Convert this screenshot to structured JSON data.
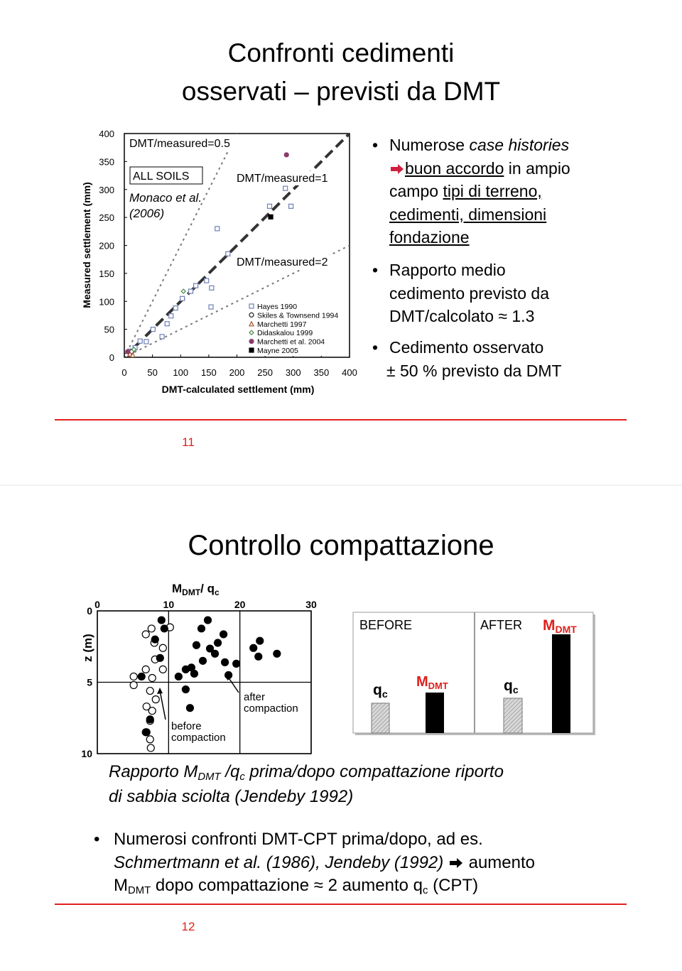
{
  "slides": [
    {
      "title": [
        "Confronti cedimenti",
        "osservati – previsti da DMT"
      ],
      "chart": {
        "type": "scatter",
        "xlabel": "DMT-calculated settlement (mm)",
        "ylabel": "Measured settlement (mm)",
        "xlim": [
          0,
          400
        ],
        "ylim": [
          0,
          400
        ],
        "xticks": [
          0,
          50,
          100,
          150,
          200,
          250,
          300,
          350,
          400
        ],
        "yticks": [
          0,
          50,
          100,
          150,
          200,
          250,
          300,
          350,
          400
        ],
        "ref_lines": [
          {
            "label": "DMT/measured=0.5",
            "ratio": 0.5
          },
          {
            "label": "DMT/measured=1",
            "ratio": 1
          },
          {
            "label": "DMT/measured=2",
            "ratio": 2
          }
        ],
        "box_label": "ALL SOILS",
        "source": [
          "Monaco et al.",
          "(2006)"
        ],
        "series": [
          {
            "name": "Hayes 1990",
            "marker": "square",
            "filled": false,
            "color": "#6d7fb5",
            "x": [
              10,
              19,
              28,
              39,
              51,
              67,
              76,
              83,
              91,
              103,
              118,
              127,
              154,
              155,
              184,
              165,
              258,
              286,
              296,
              146
            ],
            "y": [
              11,
              17,
              29,
              28,
              50,
              37,
              60,
              74,
              88,
              105,
              118,
              128,
              90,
              124,
              185,
              230,
              270,
              302,
              270,
              137
            ]
          },
          {
            "name": "Skiles & Townsend 1994",
            "marker": "circle",
            "filled": false,
            "color": "#222222",
            "x": [
              6,
              13,
              4
            ],
            "y": [
              6,
              10,
              4
            ]
          },
          {
            "name": "Marchetti 1997",
            "marker": "triangle",
            "filled": false,
            "color": "#a0522d",
            "x": [
              10,
              15
            ],
            "y": [
              6,
              4
            ]
          },
          {
            "name": "Didaskalou 1999",
            "marker": "diamond",
            "filled": false,
            "color": "#4a8a4a",
            "x": [
              105,
              17
            ],
            "y": [
              118,
              14
            ]
          },
          {
            "name": "Marchetti et al. 2004",
            "marker": "circle",
            "filled": true,
            "color": "#8b3a6a",
            "x": [
              288,
              6
            ],
            "y": [
              362,
              10
            ]
          },
          {
            "name": "Mayne 2005",
            "marker": "square",
            "filled": true,
            "color": "#000000",
            "x": [
              260
            ],
            "y": [
              251
            ]
          }
        ]
      },
      "bullets": [
        [
          "Numerose ",
          "case histories",
          "buon accordo",
          " in ampio",
          "campo ",
          "tipi di terreno,",
          "cedimenti, dimensioni",
          "fondazione"
        ],
        [
          "Rapporto medio",
          "cedimento previsto da",
          "DMT/calcolato ≈ 1.3"
        ],
        [
          "Cedimento osservato",
          "± 50 % previsto da DMT"
        ]
      ],
      "page": "11"
    },
    {
      "title": "Controllo compattazione",
      "profile": {
        "type": "scatter",
        "xlabel": [
          "M",
          "DMT",
          "/ q",
          "c"
        ],
        "ylabel": "z (m)",
        "xlim": [
          0,
          30
        ],
        "ylim": [
          0,
          10
        ],
        "xticks": [
          0,
          10,
          20,
          30
        ],
        "yticks": [
          0,
          5,
          10
        ],
        "annotations": [
          [
            "before",
            "compaction"
          ],
          [
            "after",
            "compaction"
          ]
        ],
        "series": [
          {
            "marker": "circle",
            "filled": false,
            "color": "#000000",
            "x": [
              6.8,
              7.6,
              8.0,
              9.2,
              10.2,
              8.1,
              9.2,
              6.8,
              5.1,
              5.1,
              7.7,
              7.4,
              8.2,
              6.9,
              7.7,
              7.4,
              6.9,
              7.4,
              7.5
            ],
            "y": [
              1.64,
              1.24,
              2.24,
              2.6,
              1.15,
              3.4,
              4.1,
              4.1,
              4.6,
              5.2,
              4.7,
              5.6,
              6.2,
              6.7,
              7.0,
              7.7,
              8.5,
              9.0,
              9.6
            ]
          },
          {
            "marker": "circle",
            "filled": true,
            "color": "#000000",
            "x": [
              9.0,
              9.4,
              8.1,
              8.8,
              6.2,
              15.5,
              14.6,
              17.7,
              16.9,
              13.9,
              15.8,
              16.5,
              14.8,
              17.9,
              12.4,
              13.6,
              12.4,
              13.0,
              7.4,
              6.8,
              21.9,
              22.8,
              22.6,
              25.2,
              19.5,
              18.4,
              11.4,
              13.2
            ],
            "y": [
              0.65,
              1.24,
              2.0,
              3.3,
              4.6,
              0.65,
              1.24,
              1.64,
              2.24,
              2.4,
              2.64,
              3.0,
              3.5,
              3.6,
              4.1,
              4.4,
              5.5,
              6.8,
              7.6,
              8.5,
              2.6,
              2.1,
              3.2,
              3.0,
              3.7,
              4.5,
              4.6,
              3.97
            ]
          }
        ]
      },
      "panel": {
        "before": "BEFORE",
        "after": "AFTER",
        "qc": [
          "q",
          "c"
        ],
        "mdmt": [
          "M",
          "DMT"
        ]
      },
      "caption": [
        "Rapporto M",
        "DMT",
        " /q",
        "c",
        " prima/dopo compattazione riporto",
        "di sabbia sciolta (Jendeby 1992)"
      ],
      "bullets": [
        [
          "Numerosi confronti DMT-CPT prima/dopo, ad es.",
          "Schmertmann et al. (1986), Jendeby (1992)",
          " aumento",
          "M",
          "DMT",
          " dopo compattazione ≈ 2 aumento q",
          "c",
          " (CPT)"
        ]
      ],
      "page": "12"
    }
  ]
}
